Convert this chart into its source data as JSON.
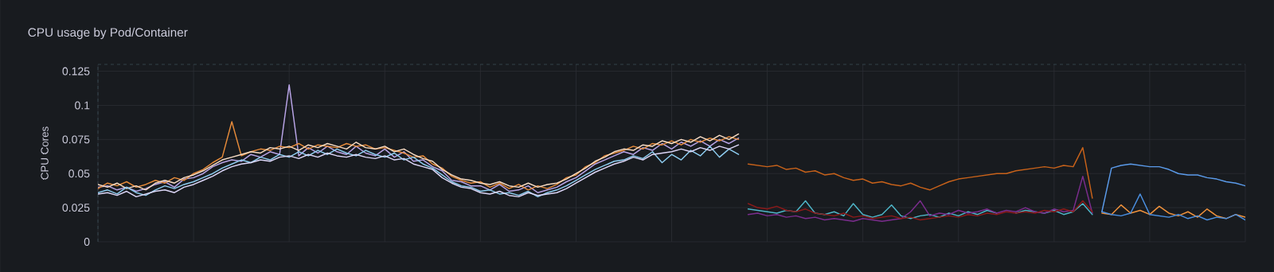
{
  "chart_data": {
    "type": "line",
    "title": "CPU usage by Pod/Container",
    "ylabel": "CPU Cores",
    "categories": [
      null,
      null,
      null,
      null,
      null,
      null,
      null,
      null,
      null,
      null,
      null,
      null,
      null,
      null,
      null,
      null,
      null,
      null,
      null,
      null,
      null,
      null,
      null,
      null,
      null,
      null,
      null,
      null,
      null,
      null,
      null,
      null,
      null,
      null,
      null,
      null,
      null,
      null,
      null,
      null,
      null,
      null,
      null,
      null,
      null,
      null,
      null,
      null,
      null,
      null,
      null,
      null,
      null,
      null,
      null,
      null,
      null,
      null,
      null,
      null,
      null,
      null,
      null,
      null,
      null,
      null,
      null,
      null,
      null,
      null,
      null,
      null,
      null,
      null,
      null,
      null,
      null,
      null,
      null,
      null,
      null,
      null,
      null,
      null,
      null,
      null,
      null,
      null,
      null,
      null,
      null,
      null,
      null,
      null,
      null,
      null,
      null,
      null,
      null,
      null,
      null,
      null,
      null,
      null,
      null,
      null,
      null,
      null,
      null,
      null,
      null,
      null,
      null,
      null,
      null,
      null,
      null,
      null,
      null,
      null,
      null
    ],
    "ylim": [
      0,
      0.13
    ],
    "yticks": [
      0,
      0.025,
      0.05,
      0.075,
      0.1,
      0.125
    ],
    "grid": true,
    "tick_labels": "y",
    "marker": "none",
    "line_style": "solid",
    "series": [
      {
        "color": "#b8a4e6",
        "values": [
          0.04,
          0.041,
          0.038,
          0.04,
          0.037,
          0.039,
          0.042,
          0.044,
          0.04,
          0.046,
          0.047,
          0.05,
          0.055,
          0.058,
          0.06,
          0.059,
          0.064,
          0.062,
          0.066,
          0.064,
          0.115,
          0.063,
          0.069,
          0.065,
          0.07,
          0.066,
          0.064,
          0.07,
          0.065,
          0.063,
          0.068,
          0.062,
          0.066,
          0.059,
          0.06,
          0.055,
          0.052,
          0.045,
          0.044,
          0.041,
          0.041,
          0.038,
          0.042,
          0.037,
          0.038,
          0.041,
          0.036,
          0.038,
          0.04,
          0.044,
          0.047,
          0.052,
          0.057,
          0.06,
          0.063,
          0.066,
          0.064,
          0.069,
          0.067,
          0.072,
          0.068,
          0.073,
          0.07,
          0.074,
          0.07,
          0.075,
          0.072,
          0.076,
          null,
          null,
          null,
          null,
          null,
          null,
          null,
          null,
          null,
          null,
          null,
          null,
          null,
          null,
          null,
          null,
          null,
          null,
          null,
          null,
          null,
          null,
          null,
          null,
          null,
          null,
          null,
          null,
          null,
          null,
          null,
          null,
          null,
          null,
          null,
          null,
          null,
          null,
          null,
          null,
          null,
          null,
          null,
          null,
          null,
          null,
          null,
          null,
          null,
          null,
          null,
          null,
          null
        ]
      },
      {
        "color": "#e58a3a",
        "values": [
          0.039,
          0.043,
          0.041,
          0.044,
          0.04,
          0.042,
          0.045,
          0.043,
          0.047,
          0.045,
          0.05,
          0.053,
          0.058,
          0.062,
          0.088,
          0.063,
          0.066,
          0.068,
          0.067,
          0.07,
          0.069,
          0.072,
          0.068,
          0.071,
          0.07,
          0.069,
          0.072,
          0.07,
          0.071,
          0.068,
          0.069,
          0.067,
          0.065,
          0.062,
          0.063,
          0.057,
          0.054,
          0.048,
          0.045,
          0.043,
          0.044,
          0.04,
          0.043,
          0.039,
          0.042,
          0.038,
          0.041,
          0.039,
          0.042,
          0.047,
          0.049,
          0.055,
          0.058,
          0.063,
          0.065,
          0.067,
          0.07,
          0.068,
          0.072,
          0.071,
          0.074,
          0.071,
          0.075,
          0.073,
          0.076,
          0.074,
          0.077,
          0.075,
          null,
          null,
          null,
          null,
          null,
          null,
          null,
          null,
          null,
          null,
          null,
          null,
          null,
          null,
          null,
          null,
          null,
          null,
          null,
          null,
          null,
          null,
          null,
          null,
          null,
          null,
          null,
          null,
          null,
          null,
          null,
          null,
          null,
          null,
          null,
          null,
          null,
          null,
          null,
          null,
          null,
          null,
          null,
          null,
          null,
          null,
          null,
          null,
          null,
          null,
          null,
          null,
          null
        ]
      },
      {
        "color": "#f8dcc4",
        "values": [
          0.042,
          0.04,
          0.043,
          0.039,
          0.041,
          0.038,
          0.043,
          0.045,
          0.043,
          0.047,
          0.049,
          0.052,
          0.056,
          0.06,
          0.062,
          0.064,
          0.066,
          0.065,
          0.069,
          0.068,
          0.07,
          0.067,
          0.071,
          0.069,
          0.072,
          0.07,
          0.068,
          0.073,
          0.069,
          0.068,
          0.07,
          0.066,
          0.068,
          0.064,
          0.061,
          0.059,
          0.053,
          0.049,
          0.046,
          0.045,
          0.043,
          0.042,
          0.044,
          0.041,
          0.04,
          0.043,
          0.04,
          0.042,
          0.043,
          0.046,
          0.05,
          0.054,
          0.059,
          0.062,
          0.066,
          0.068,
          0.067,
          0.071,
          0.07,
          0.074,
          0.072,
          0.075,
          0.073,
          0.077,
          0.074,
          0.078,
          0.075,
          0.079,
          null,
          null,
          null,
          null,
          null,
          null,
          null,
          null,
          null,
          null,
          null,
          null,
          null,
          null,
          null,
          null,
          null,
          null,
          null,
          null,
          null,
          null,
          null,
          null,
          null,
          null,
          null,
          null,
          null,
          null,
          null,
          null,
          null,
          null,
          null,
          null,
          null,
          null,
          null,
          null,
          null,
          null,
          null,
          null,
          null,
          null,
          null,
          null,
          null,
          null,
          null,
          null,
          null
        ]
      },
      {
        "color": "#8ecdf0",
        "values": [
          0.036,
          0.038,
          0.035,
          0.04,
          0.036,
          0.034,
          0.038,
          0.041,
          0.039,
          0.042,
          0.044,
          0.047,
          0.05,
          0.054,
          0.057,
          0.06,
          0.058,
          0.062,
          0.06,
          0.064,
          0.062,
          0.066,
          0.063,
          0.067,
          0.064,
          0.068,
          0.065,
          0.063,
          0.067,
          0.064,
          0.062,
          0.065,
          0.06,
          0.062,
          0.057,
          0.054,
          0.049,
          0.044,
          0.041,
          0.04,
          0.037,
          0.038,
          0.035,
          0.036,
          0.034,
          0.037,
          0.033,
          0.036,
          0.038,
          0.041,
          0.045,
          0.049,
          0.053,
          0.056,
          0.059,
          0.06,
          0.063,
          0.061,
          0.066,
          0.058,
          0.064,
          0.06,
          0.067,
          0.063,
          0.07,
          0.062,
          0.068,
          0.064,
          null,
          null,
          null,
          null,
          null,
          null,
          null,
          null,
          null,
          null,
          null,
          null,
          null,
          null,
          null,
          null,
          null,
          null,
          null,
          null,
          null,
          null,
          null,
          null,
          null,
          null,
          null,
          null,
          null,
          null,
          null,
          null,
          null,
          null,
          null,
          null,
          null,
          null,
          null,
          null,
          null,
          null,
          null,
          null,
          null,
          null,
          null,
          null,
          null,
          null,
          null,
          null,
          null
        ]
      },
      {
        "color": "#dcd6f7",
        "values": [
          0.035,
          0.036,
          0.034,
          0.037,
          0.033,
          0.035,
          0.037,
          0.038,
          0.036,
          0.04,
          0.042,
          0.045,
          0.048,
          0.052,
          0.055,
          0.057,
          0.058,
          0.06,
          0.059,
          0.062,
          0.063,
          0.061,
          0.064,
          0.062,
          0.065,
          0.063,
          0.062,
          0.064,
          0.062,
          0.061,
          0.063,
          0.06,
          0.061,
          0.057,
          0.055,
          0.053,
          0.047,
          0.043,
          0.04,
          0.039,
          0.036,
          0.035,
          0.037,
          0.034,
          0.033,
          0.036,
          0.034,
          0.035,
          0.036,
          0.039,
          0.043,
          0.047,
          0.051,
          0.054,
          0.057,
          0.059,
          0.062,
          0.06,
          0.064,
          0.065,
          0.066,
          0.068,
          0.066,
          0.069,
          0.067,
          0.07,
          0.068,
          0.071,
          null,
          null,
          null,
          null,
          null,
          null,
          null,
          null,
          null,
          null,
          null,
          null,
          null,
          null,
          null,
          null,
          null,
          null,
          null,
          null,
          null,
          null,
          null,
          null,
          null,
          null,
          null,
          null,
          null,
          null,
          null,
          null,
          null,
          null,
          null,
          null,
          null,
          null,
          null,
          null,
          null,
          null,
          null,
          null,
          null,
          null,
          null,
          null,
          null,
          null,
          null,
          null,
          null
        ]
      },
      {
        "color": "#c8621a",
        "values": [
          null,
          null,
          null,
          null,
          null,
          null,
          null,
          null,
          null,
          null,
          null,
          null,
          null,
          null,
          null,
          null,
          null,
          null,
          null,
          null,
          null,
          null,
          null,
          null,
          null,
          null,
          null,
          null,
          null,
          null,
          null,
          null,
          null,
          null,
          null,
          null,
          null,
          null,
          null,
          null,
          null,
          null,
          null,
          null,
          null,
          null,
          null,
          null,
          null,
          null,
          null,
          null,
          null,
          null,
          null,
          null,
          null,
          null,
          null,
          null,
          null,
          null,
          null,
          null,
          null,
          null,
          null,
          null,
          0.057,
          0.056,
          0.055,
          0.056,
          0.053,
          0.054,
          0.051,
          0.052,
          0.049,
          0.05,
          0.047,
          0.045,
          0.046,
          0.043,
          0.044,
          0.042,
          0.041,
          0.043,
          0.04,
          0.038,
          0.041,
          0.044,
          0.046,
          0.047,
          0.048,
          0.049,
          0.05,
          0.05,
          0.052,
          0.053,
          0.054,
          0.055,
          0.054,
          0.056,
          0.055,
          0.069,
          0.032,
          null,
          null,
          null,
          null,
          null,
          null,
          null,
          null,
          null,
          null,
          null,
          null,
          null,
          null,
          null,
          null
        ]
      },
      {
        "color": "#4fb6c8",
        "values": [
          null,
          null,
          null,
          null,
          null,
          null,
          null,
          null,
          null,
          null,
          null,
          null,
          null,
          null,
          null,
          null,
          null,
          null,
          null,
          null,
          null,
          null,
          null,
          null,
          null,
          null,
          null,
          null,
          null,
          null,
          null,
          null,
          null,
          null,
          null,
          null,
          null,
          null,
          null,
          null,
          null,
          null,
          null,
          null,
          null,
          null,
          null,
          null,
          null,
          null,
          null,
          null,
          null,
          null,
          null,
          null,
          null,
          null,
          null,
          null,
          null,
          null,
          null,
          null,
          null,
          null,
          null,
          null,
          0.024,
          0.023,
          0.022,
          0.021,
          0.023,
          0.022,
          0.03,
          0.021,
          0.02,
          0.022,
          0.019,
          0.028,
          0.02,
          0.018,
          0.02,
          0.027,
          0.019,
          0.017,
          0.019,
          0.02,
          0.018,
          0.021,
          0.019,
          0.022,
          0.02,
          0.023,
          0.021,
          null,
          0.021,
          0.023,
          0.022,
          0.021,
          0.023,
          0.02,
          0.022,
          0.028,
          0.02,
          null,
          null,
          null,
          null,
          null,
          null,
          null,
          null,
          null,
          null,
          null,
          null,
          null,
          null,
          null,
          null
        ]
      },
      {
        "color": "#7b2d8e",
        "values": [
          null,
          null,
          null,
          null,
          null,
          null,
          null,
          null,
          null,
          null,
          null,
          null,
          null,
          null,
          null,
          null,
          null,
          null,
          null,
          null,
          null,
          null,
          null,
          null,
          null,
          null,
          null,
          null,
          null,
          null,
          null,
          null,
          null,
          null,
          null,
          null,
          null,
          null,
          null,
          null,
          null,
          null,
          null,
          null,
          null,
          null,
          null,
          null,
          null,
          null,
          null,
          null,
          null,
          null,
          null,
          null,
          null,
          null,
          null,
          null,
          null,
          null,
          null,
          null,
          null,
          null,
          null,
          null,
          0.02,
          0.021,
          0.019,
          0.02,
          0.018,
          0.019,
          0.017,
          0.018,
          0.016,
          0.017,
          0.016,
          0.015,
          0.017,
          0.016,
          0.015,
          0.016,
          0.017,
          0.022,
          0.03,
          0.019,
          0.021,
          0.02,
          0.023,
          0.021,
          0.022,
          0.024,
          0.021,
          0.023,
          0.022,
          0.025,
          0.022,
          0.021,
          0.024,
          0.022,
          0.023,
          0.048,
          0.021,
          null,
          null,
          null,
          null,
          null,
          null,
          null,
          null,
          null,
          null,
          null,
          null,
          null,
          null,
          null,
          null
        ]
      },
      {
        "color": "#8b1a1a",
        "values": [
          null,
          null,
          null,
          null,
          null,
          null,
          null,
          null,
          null,
          null,
          null,
          null,
          null,
          null,
          null,
          null,
          null,
          null,
          null,
          null,
          null,
          null,
          null,
          null,
          null,
          null,
          null,
          null,
          null,
          null,
          null,
          null,
          null,
          null,
          null,
          null,
          null,
          null,
          null,
          null,
          null,
          null,
          null,
          null,
          null,
          null,
          null,
          null,
          null,
          null,
          null,
          null,
          null,
          null,
          null,
          null,
          null,
          null,
          null,
          null,
          null,
          null,
          null,
          null,
          null,
          null,
          null,
          null,
          0.028,
          0.025,
          0.024,
          0.026,
          0.023,
          0.022,
          0.024,
          0.021,
          0.02,
          0.019,
          0.021,
          0.018,
          0.019,
          0.017,
          0.018,
          0.019,
          0.017,
          0.018,
          0.016,
          0.017,
          0.018,
          0.019,
          0.018,
          0.02,
          0.019,
          0.021,
          0.02,
          0.022,
          0.021,
          0.022,
          0.021,
          0.023,
          0.022,
          0.024,
          0.022,
          0.03,
          0.022,
          null,
          null,
          null,
          null,
          null,
          null,
          null,
          null,
          null,
          null,
          null,
          null,
          null,
          null,
          null,
          null
        ]
      },
      {
        "color": "#f0923c",
        "values": [
          null,
          null,
          null,
          null,
          null,
          null,
          null,
          null,
          null,
          null,
          null,
          null,
          null,
          null,
          null,
          null,
          null,
          null,
          null,
          null,
          null,
          null,
          null,
          null,
          null,
          null,
          null,
          null,
          null,
          null,
          null,
          null,
          null,
          null,
          null,
          null,
          null,
          null,
          null,
          null,
          null,
          null,
          null,
          null,
          null,
          null,
          null,
          null,
          null,
          null,
          null,
          null,
          null,
          null,
          null,
          null,
          null,
          null,
          null,
          null,
          null,
          null,
          null,
          null,
          null,
          null,
          null,
          null,
          null,
          null,
          null,
          null,
          null,
          null,
          null,
          null,
          null,
          null,
          null,
          null,
          null,
          null,
          null,
          null,
          null,
          null,
          null,
          null,
          null,
          null,
          null,
          null,
          null,
          null,
          null,
          null,
          null,
          null,
          null,
          null,
          null,
          null,
          null,
          null,
          null,
          0.021,
          0.02,
          0.027,
          0.021,
          0.023,
          0.02,
          0.026,
          0.021,
          0.019,
          0.022,
          0.018,
          0.024,
          0.019,
          0.017,
          0.02,
          0.018
        ]
      },
      {
        "color": "#4a8fe0",
        "values": [
          null,
          null,
          null,
          null,
          null,
          null,
          null,
          null,
          null,
          null,
          null,
          null,
          null,
          null,
          null,
          null,
          null,
          null,
          null,
          null,
          null,
          null,
          null,
          null,
          null,
          null,
          null,
          null,
          null,
          null,
          null,
          null,
          null,
          null,
          null,
          null,
          null,
          null,
          null,
          null,
          null,
          null,
          null,
          null,
          null,
          null,
          null,
          null,
          null,
          null,
          null,
          null,
          null,
          null,
          null,
          null,
          null,
          null,
          null,
          null,
          null,
          null,
          null,
          null,
          null,
          null,
          null,
          null,
          null,
          null,
          null,
          null,
          null,
          null,
          null,
          null,
          null,
          null,
          null,
          null,
          null,
          null,
          null,
          null,
          null,
          null,
          null,
          null,
          null,
          null,
          null,
          null,
          null,
          null,
          null,
          null,
          null,
          null,
          null,
          null,
          null,
          null,
          null,
          null,
          null,
          0.022,
          0.02,
          0.019,
          0.021,
          0.035,
          0.02,
          0.019,
          0.018,
          0.02,
          0.017,
          0.019,
          0.016,
          0.018,
          0.017,
          0.02,
          0.016
        ]
      },
      {
        "color": "#5b9bea",
        "values": [
          null,
          null,
          null,
          null,
          null,
          null,
          null,
          null,
          null,
          null,
          null,
          null,
          null,
          null,
          null,
          null,
          null,
          null,
          null,
          null,
          null,
          null,
          null,
          null,
          null,
          null,
          null,
          null,
          null,
          null,
          null,
          null,
          null,
          null,
          null,
          null,
          null,
          null,
          null,
          null,
          null,
          null,
          null,
          null,
          null,
          null,
          null,
          null,
          null,
          null,
          null,
          null,
          null,
          null,
          null,
          null,
          null,
          null,
          null,
          null,
          null,
          null,
          null,
          null,
          null,
          null,
          null,
          null,
          null,
          null,
          null,
          null,
          null,
          null,
          null,
          null,
          null,
          null,
          null,
          null,
          null,
          null,
          null,
          null,
          null,
          null,
          null,
          null,
          null,
          null,
          null,
          null,
          null,
          null,
          null,
          null,
          null,
          null,
          null,
          null,
          null,
          null,
          null,
          null,
          null,
          0.022,
          0.054,
          0.056,
          0.057,
          0.056,
          0.055,
          0.055,
          0.053,
          0.05,
          0.049,
          0.049,
          0.047,
          0.046,
          0.044,
          0.043,
          0.041
        ]
      }
    ]
  }
}
